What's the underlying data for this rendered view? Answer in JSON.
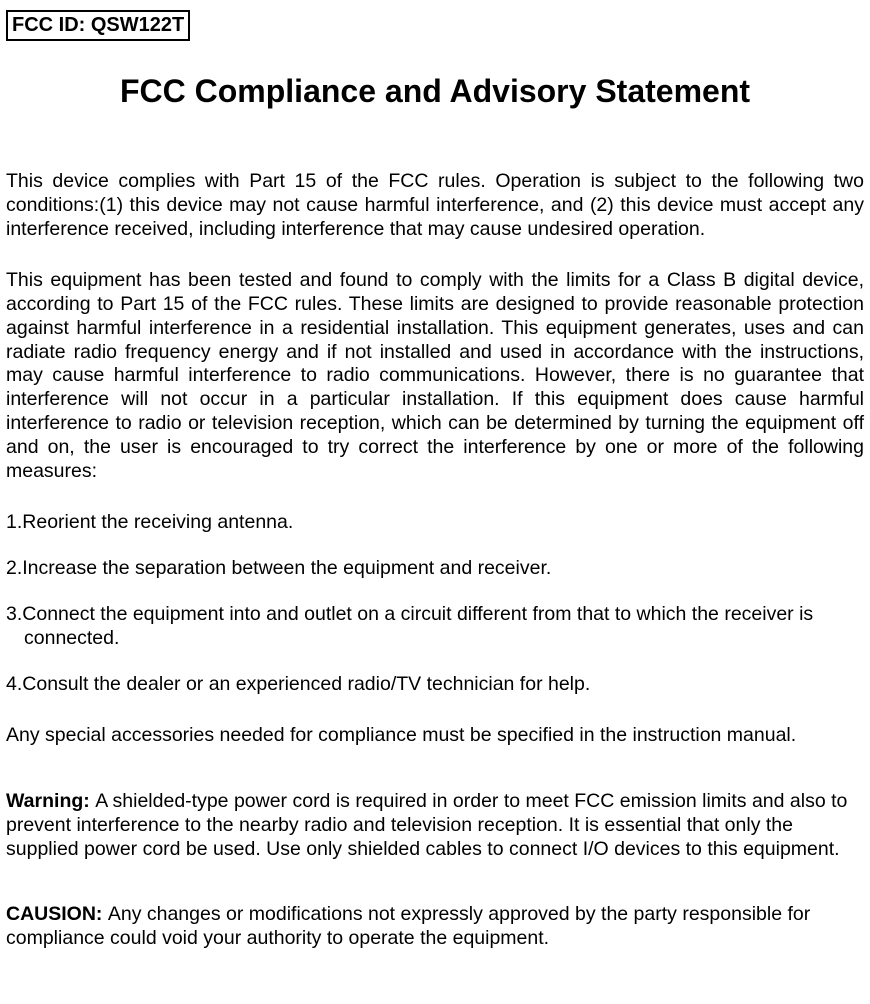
{
  "colors": {
    "background": "#ffffff",
    "text": "#000000",
    "border": "#000000"
  },
  "typography": {
    "body_fontsize": 19.5,
    "title_fontsize": 32,
    "fcc_id_fontsize": 20
  },
  "header": {
    "fcc_id_label": "FCC ID: QSW122T"
  },
  "title": "FCC Compliance and Advisory Statement",
  "paragraphs": {
    "compliance": "This device complies with Part 15 of the FCC rules. Operation is subject to the following two conditions:(1) this device may not cause harmful interference, and (2) this device must accept any interference received, including interference that may cause undesired operation.",
    "tested": "This equipment has been tested and found to comply with the limits for a Class B digital device, according to Part 15 of the FCC rules.  These limits are designed to provide reasonable protection against harmful interference in a residential installation.   This equipment generates, uses and can radiate radio frequency energy and if not installed and used in accordance with the instructions, may cause harmful interference to radio communications.   However, there is no guarantee that interference will not occur in a particular installation.   If this equipment does cause harmful interference to radio or television reception, which can be determined by turning the equipment off and on, the user is encouraged to try correct the interference by one or more of the following measures:",
    "accessories": "Any special accessories needed for compliance must be specified in the instruction manual."
  },
  "list": {
    "item1": "1.Reorient the receiving antenna.",
    "item2": "2.Increase the separation between the equipment and receiver.",
    "item3_line1": "3.Connect the equipment into and outlet on a circuit different from that to which the receiver is",
    "item3_line2": "connected.",
    "item4": "4.Consult the dealer or an experienced radio/TV technician for help."
  },
  "warning": {
    "label": "Warning: ",
    "text": "A shielded-type power cord is required in order to meet FCC emission limits and also to prevent interference to the nearby radio and television reception.   It is essential that only the supplied power cord be used. Use only shielded cables to connect I/O devices to this equipment."
  },
  "caution": {
    "label": "CAUSION: ",
    "text": "Any changes or modifications not expressly approved by the party responsible for compliance could void your authority to operate the equipment."
  }
}
